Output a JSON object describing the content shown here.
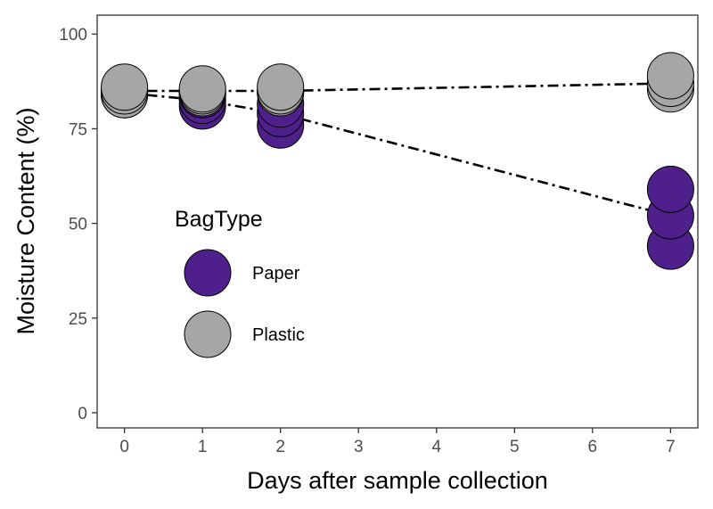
{
  "chart_data": {
    "type": "scatter",
    "xlabel": "Days after sample collection",
    "ylabel": "Moisture Content (%)",
    "xlim": [
      -0.35,
      7.35
    ],
    "ylim": [
      -4,
      105
    ],
    "x_ticks": [
      0,
      1,
      2,
      3,
      4,
      5,
      6,
      7
    ],
    "y_ticks": [
      0,
      25,
      50,
      75,
      100
    ],
    "grid": false,
    "legend_position": "left-center",
    "legend_title": "BagType",
    "series": [
      {
        "name": "Paper",
        "color": "#4f1f8c",
        "points": [
          {
            "x": 0,
            "y": 85
          },
          {
            "x": 0,
            "y": 84.5
          },
          {
            "x": 0,
            "y": 84
          },
          {
            "x": 1,
            "y": 81
          },
          {
            "x": 1,
            "y": 82.5
          },
          {
            "x": 1,
            "y": 84
          },
          {
            "x": 2,
            "y": 76
          },
          {
            "x": 2,
            "y": 79
          },
          {
            "x": 2,
            "y": 81.5
          },
          {
            "x": 7,
            "y": 44
          },
          {
            "x": 7,
            "y": 52
          },
          {
            "x": 7,
            "y": 59
          }
        ],
        "trend": [
          {
            "x": 0,
            "y": 84.5
          },
          {
            "x": 1,
            "y": 82.5
          },
          {
            "x": 2,
            "y": 79
          },
          {
            "x": 7,
            "y": 52
          }
        ]
      },
      {
        "name": "Plastic",
        "color": "#a6a6a6",
        "points": [
          {
            "x": 0,
            "y": 84
          },
          {
            "x": 0,
            "y": 85
          },
          {
            "x": 0,
            "y": 86
          },
          {
            "x": 1,
            "y": 84.5
          },
          {
            "x": 1,
            "y": 85
          },
          {
            "x": 1,
            "y": 85.5
          },
          {
            "x": 2,
            "y": 84.5
          },
          {
            "x": 2,
            "y": 85
          },
          {
            "x": 2,
            "y": 86
          },
          {
            "x": 7,
            "y": 85.5
          },
          {
            "x": 7,
            "y": 87
          },
          {
            "x": 7,
            "y": 89
          }
        ],
        "trend": [
          {
            "x": 0,
            "y": 85
          },
          {
            "x": 1,
            "y": 85
          },
          {
            "x": 2,
            "y": 85
          },
          {
            "x": 7,
            "y": 87
          }
        ]
      }
    ]
  }
}
